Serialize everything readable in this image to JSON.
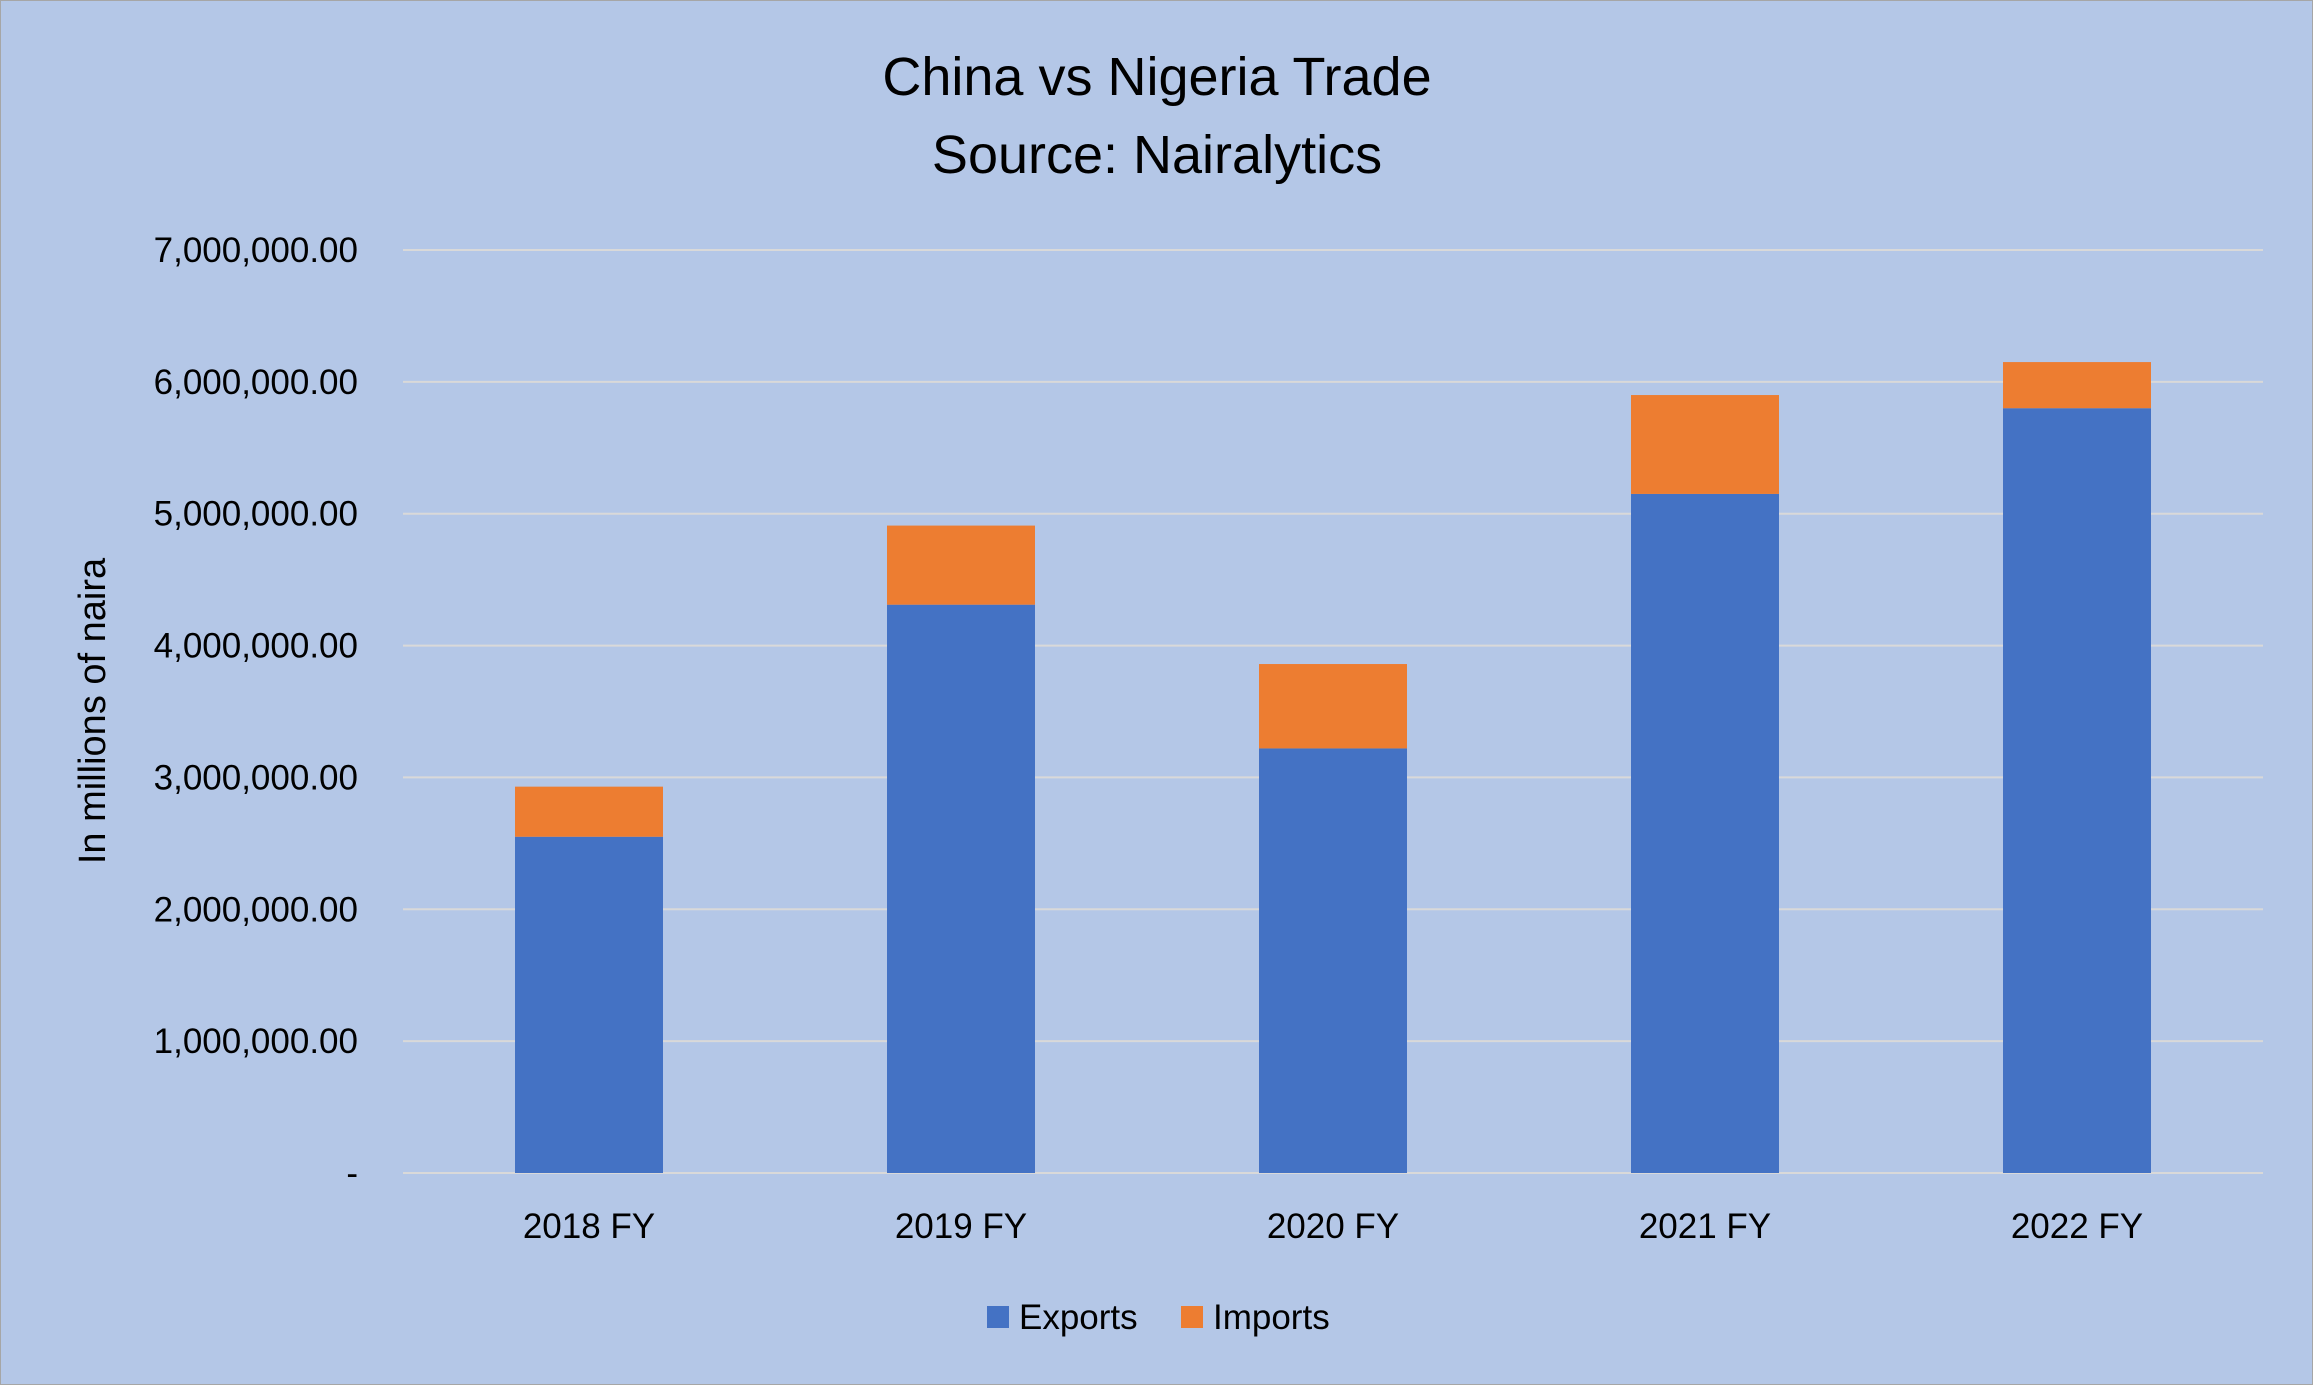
{
  "colors": {
    "background": "#b4c7e7",
    "gridline": "#d9d9d9",
    "exports": "#4472c4",
    "imports": "#ed7d31"
  },
  "chart_data": {
    "type": "bar",
    "stacked": true,
    "title_lines": [
      "China vs Nigeria Trade",
      "Source: Nairalytics"
    ],
    "xlabel": "",
    "ylabel": "In millions of naira",
    "categories": [
      "2018 FY",
      "2019 FY",
      "2020 FY",
      "2021 FY",
      "2022 FY"
    ],
    "series": [
      {
        "name": "Exports",
        "values": [
          2550000,
          4310000,
          3220000,
          5150000,
          5800000
        ]
      },
      {
        "name": "Imports",
        "values": [
          380000,
          600000,
          640000,
          750000,
          350000
        ]
      }
    ],
    "ylim": [
      0,
      7000000
    ],
    "ytick_values": [
      0,
      1000000,
      2000000,
      3000000,
      4000000,
      5000000,
      6000000,
      7000000
    ],
    "ytick_labels": [
      "-",
      "1,000,000.00",
      "2,000,000.00",
      "3,000,000.00",
      "4,000,000.00",
      "5,000,000.00",
      "6,000,000.00",
      "7,000,000.00"
    ],
    "grid": true,
    "legend_position": "bottom"
  }
}
